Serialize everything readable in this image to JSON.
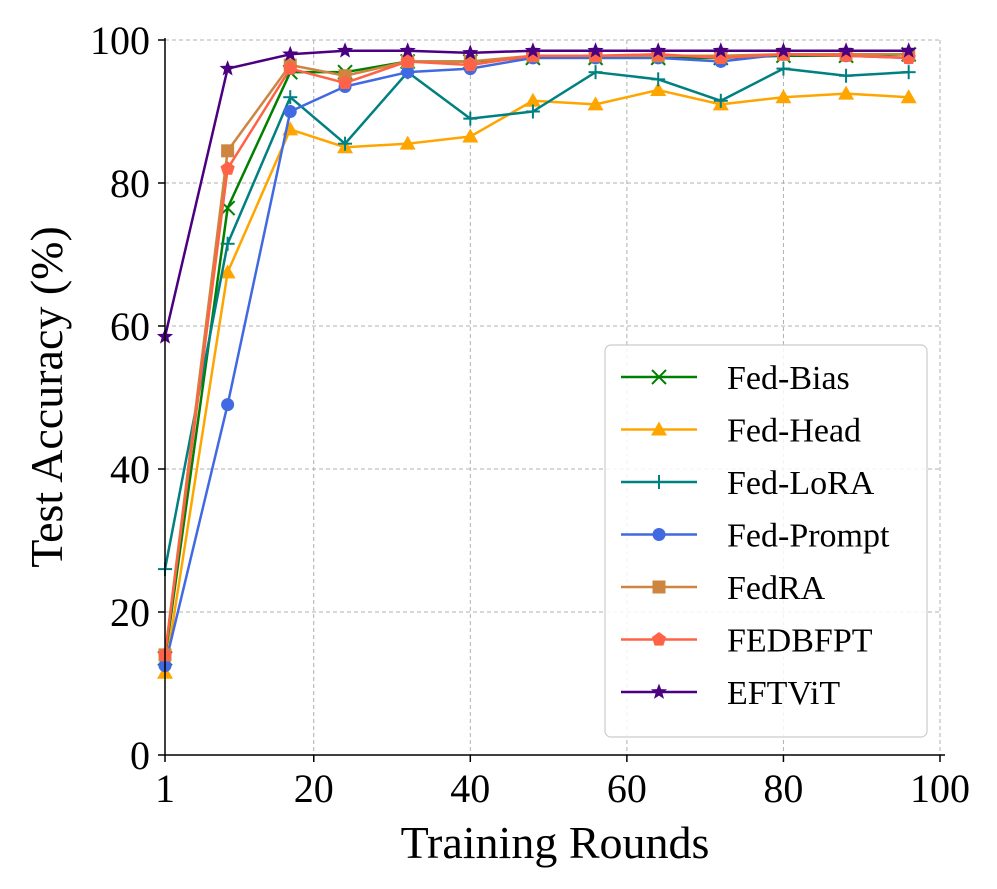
{
  "chart_data": {
    "type": "line",
    "title": "",
    "xlabel": "Training Rounds",
    "ylabel": "Test Accuracy (%)",
    "xlim": [
      1,
      100
    ],
    "ylim": [
      0,
      100
    ],
    "x_ticks": [
      1,
      20,
      40,
      60,
      80,
      100
    ],
    "y_ticks": [
      0,
      20,
      40,
      60,
      80,
      100
    ],
    "grid": true,
    "legend_position": "lower-right",
    "x": [
      1,
      9,
      17,
      24,
      32,
      40,
      48,
      56,
      64,
      72,
      80,
      88,
      96
    ],
    "series": [
      {
        "name": "Fed-Bias",
        "color": "#008000",
        "marker": "x",
        "values": [
          13.5,
          76.5,
          95.5,
          95.5,
          97.0,
          97.0,
          97.5,
          97.5,
          97.5,
          97.5,
          97.8,
          97.8,
          98.0
        ]
      },
      {
        "name": "Fed-Head",
        "color": "#FFA500",
        "marker": "triangle",
        "values": [
          11.5,
          67.5,
          87.5,
          85.0,
          85.5,
          86.5,
          91.5,
          91.0,
          93.0,
          91.0,
          92.0,
          92.5,
          92.0
        ]
      },
      {
        "name": "Fed-LoRA",
        "color": "#008080",
        "marker": "plus",
        "values": [
          26.0,
          71.5,
          92.0,
          85.5,
          95.5,
          89.0,
          90.0,
          95.5,
          94.5,
          91.5,
          96.0,
          95.0,
          95.5
        ]
      },
      {
        "name": "Fed-Prompt",
        "color": "#4169E1",
        "marker": "circle",
        "values": [
          12.5,
          49.0,
          90.0,
          93.5,
          95.5,
          96.0,
          97.5,
          97.5,
          97.5,
          97.0,
          98.0,
          97.8,
          97.5
        ]
      },
      {
        "name": "FedRA",
        "color": "#CD853F",
        "marker": "square",
        "values": [
          14.0,
          84.5,
          96.5,
          95.0,
          97.0,
          97.0,
          97.8,
          97.8,
          97.8,
          97.8,
          98.0,
          98.0,
          98.0
        ]
      },
      {
        "name": "FEDBFPT",
        "color": "#FF6347",
        "marker": "pentagon",
        "values": [
          14.0,
          82.0,
          96.0,
          94.0,
          97.0,
          96.5,
          97.8,
          97.8,
          98.0,
          97.5,
          98.0,
          97.8,
          97.5
        ]
      },
      {
        "name": "EFTViT",
        "color": "#4B0082",
        "marker": "star",
        "values": [
          58.5,
          96.0,
          98.0,
          98.5,
          98.5,
          98.2,
          98.5,
          98.5,
          98.5,
          98.5,
          98.5,
          98.5,
          98.5
        ]
      }
    ]
  }
}
